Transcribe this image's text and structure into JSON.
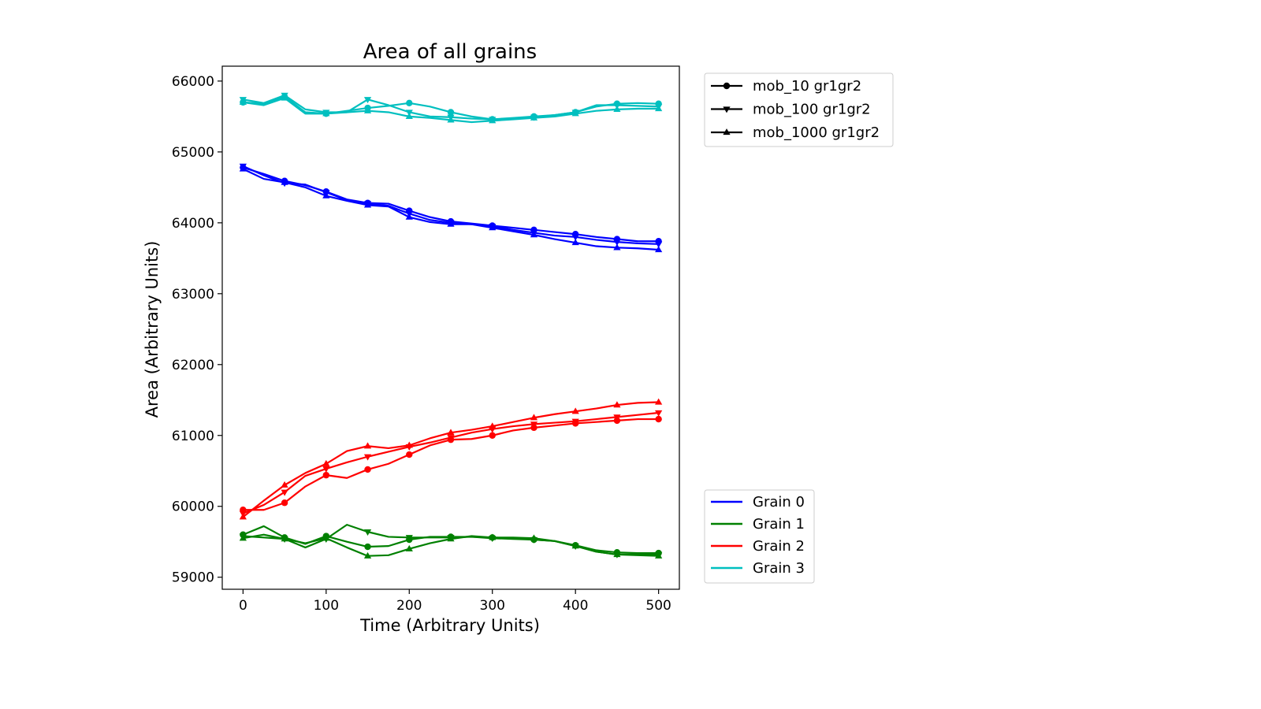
{
  "chart_data": {
    "type": "line",
    "title": "Area of all grains",
    "xlabel": "Time (Arbitrary Units)",
    "ylabel": "Area (Arbitrary Units)",
    "xlim": [
      -25,
      525
    ],
    "ylim": [
      58830,
      66210
    ],
    "xticks": [
      0,
      100,
      200,
      300,
      400,
      500
    ],
    "yticks": [
      59000,
      60000,
      61000,
      62000,
      63000,
      64000,
      65000,
      66000
    ],
    "grid": false,
    "legend_runs_position": "upper-right-outside",
    "legend_grains_position": "lower-right-outside",
    "runs": [
      {
        "name": "mob_10 gr1gr2",
        "marker": "circle"
      },
      {
        "name": "mob_100 gr1gr2",
        "marker": "triangle-down"
      },
      {
        "name": "mob_1000 gr1gr2",
        "marker": "triangle-up"
      }
    ],
    "grains": [
      {
        "name": "Grain 0",
        "color": "#0000ff"
      },
      {
        "name": "Grain 1",
        "color": "#008000"
      },
      {
        "name": "Grain 2",
        "color": "#ff0000"
      },
      {
        "name": "Grain 3",
        "color": "#00bfbf"
      }
    ],
    "x": [
      0,
      25,
      50,
      75,
      100,
      125,
      150,
      175,
      200,
      225,
      250,
      275,
      300,
      325,
      350,
      375,
      400,
      425,
      450,
      475,
      500
    ],
    "series": [
      {
        "grain": 0,
        "run": 0,
        "values": [
          64780,
          64690,
          64590,
          64530,
          64440,
          64330,
          64280,
          64270,
          64170,
          64080,
          64020,
          63990,
          63960,
          63930,
          63900,
          63870,
          63840,
          63800,
          63770,
          63740,
          63740
        ]
      },
      {
        "grain": 0,
        "run": 1,
        "values": [
          64800,
          64670,
          64560,
          64540,
          64430,
          64320,
          64270,
          64240,
          64130,
          64040,
          64000,
          63980,
          63950,
          63900,
          63860,
          63820,
          63800,
          63760,
          63730,
          63710,
          63700
        ]
      },
      {
        "grain": 0,
        "run": 2,
        "values": [
          64760,
          64620,
          64570,
          64500,
          64380,
          64310,
          64250,
          64230,
          64080,
          64010,
          63980,
          63980,
          63930,
          63880,
          63830,
          63770,
          63720,
          63670,
          63650,
          63640,
          63620
        ]
      },
      {
        "grain": 1,
        "run": 0,
        "values": [
          59600,
          59720,
          59560,
          59470,
          59580,
          59500,
          59430,
          59440,
          59530,
          59570,
          59570,
          59570,
          59560,
          59550,
          59530,
          59510,
          59450,
          59380,
          59350,
          59340,
          59340
        ]
      },
      {
        "grain": 1,
        "run": 1,
        "values": [
          59580,
          59560,
          59540,
          59420,
          59540,
          59740,
          59640,
          59570,
          59560,
          59560,
          59560,
          59570,
          59550,
          59540,
          59530,
          59510,
          59440,
          59360,
          59320,
          59320,
          59320
        ]
      },
      {
        "grain": 1,
        "run": 2,
        "values": [
          59550,
          59600,
          59540,
          59480,
          59550,
          59420,
          59300,
          59310,
          59400,
          59480,
          59540,
          59580,
          59560,
          59560,
          59550,
          59510,
          59440,
          59360,
          59320,
          59310,
          59300
        ]
      },
      {
        "grain": 2,
        "run": 0,
        "values": [
          59950,
          59950,
          60050,
          60280,
          60440,
          60400,
          60520,
          60600,
          60730,
          60860,
          60940,
          60950,
          61000,
          61070,
          61110,
          61140,
          61170,
          61190,
          61210,
          61230,
          61230
        ]
      },
      {
        "grain": 2,
        "run": 1,
        "values": [
          59900,
          60020,
          60200,
          60430,
          60530,
          60620,
          60700,
          60770,
          60840,
          60900,
          60970,
          61040,
          61090,
          61130,
          61160,
          61180,
          61200,
          61230,
          61260,
          61290,
          61320
        ]
      },
      {
        "grain": 2,
        "run": 2,
        "values": [
          59850,
          60080,
          60300,
          60470,
          60600,
          60780,
          60850,
          60820,
          60860,
          60960,
          61040,
          61080,
          61130,
          61190,
          61250,
          61300,
          61340,
          61380,
          61430,
          61460,
          61470
        ]
      },
      {
        "grain": 3,
        "run": 0,
        "values": [
          65700,
          65680,
          65780,
          65560,
          65540,
          65580,
          65620,
          65650,
          65690,
          65640,
          65560,
          65500,
          65460,
          65480,
          65500,
          65520,
          65560,
          65640,
          65680,
          65690,
          65680
        ]
      },
      {
        "grain": 3,
        "run": 1,
        "values": [
          65740,
          65690,
          65800,
          65600,
          65560,
          65560,
          65740,
          65660,
          65560,
          65500,
          65490,
          65470,
          65460,
          65470,
          65490,
          65520,
          65560,
          65660,
          65660,
          65650,
          65640
        ]
      },
      {
        "grain": 3,
        "run": 2,
        "values": [
          65700,
          65660,
          65760,
          65540,
          65540,
          65560,
          65580,
          65560,
          65500,
          65480,
          65450,
          65420,
          65440,
          65460,
          65480,
          65500,
          65540,
          65580,
          65600,
          65610,
          65610
        ]
      }
    ]
  }
}
